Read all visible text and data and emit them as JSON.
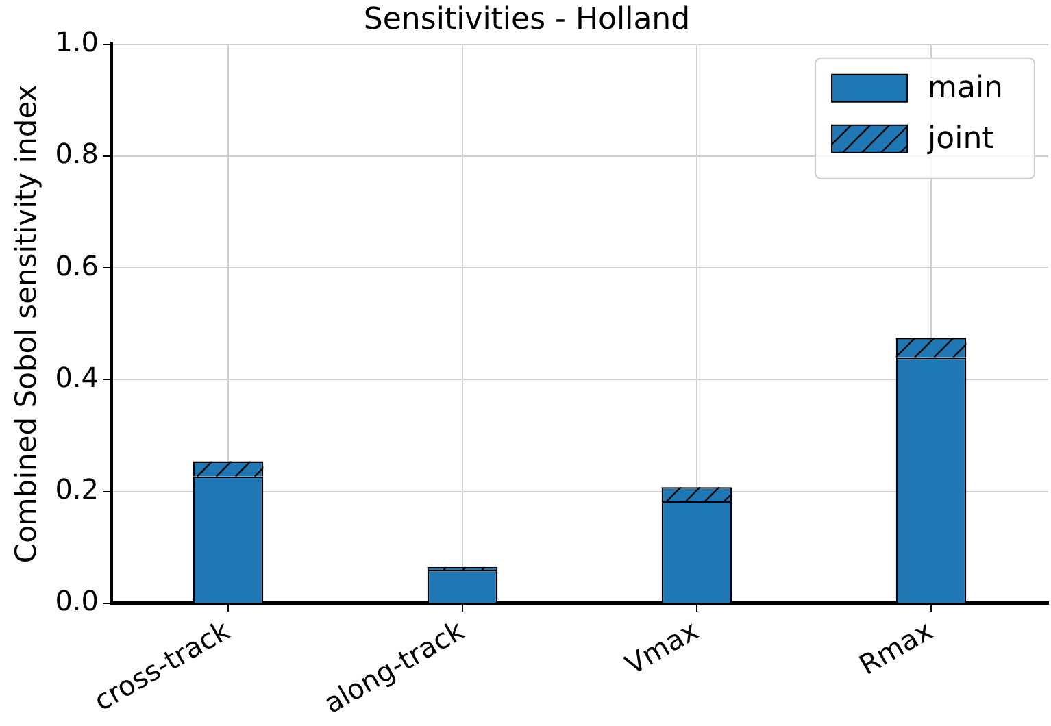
{
  "chart_data": {
    "type": "bar",
    "title": "Sensitivities - Holland",
    "ylabel": "Combined Sobol sensitivity index",
    "categories": [
      "cross-track",
      "along-track",
      "Vmax",
      "Rmax"
    ],
    "stacked": true,
    "series": [
      {
        "name": "main",
        "color": "#1f77b4",
        "values": [
          0.227,
          0.06,
          0.183,
          0.44
        ]
      },
      {
        "name": "joint",
        "color": "#1f77b4",
        "values": [
          0.027,
          0.005,
          0.025,
          0.035
        ]
      }
    ],
    "ylim": [
      0,
      1
    ],
    "yticks": [
      {
        "value": 0,
        "label": "0.0"
      },
      {
        "value": 0.2,
        "label": "0.2"
      },
      {
        "value": 0.4,
        "label": "0.4"
      },
      {
        "value": 0.6,
        "label": "0.6"
      },
      {
        "value": 0.8,
        "label": "0.8"
      },
      {
        "value": 1,
        "label": "1.0"
      }
    ],
    "grid": true,
    "legend": "top right"
  }
}
